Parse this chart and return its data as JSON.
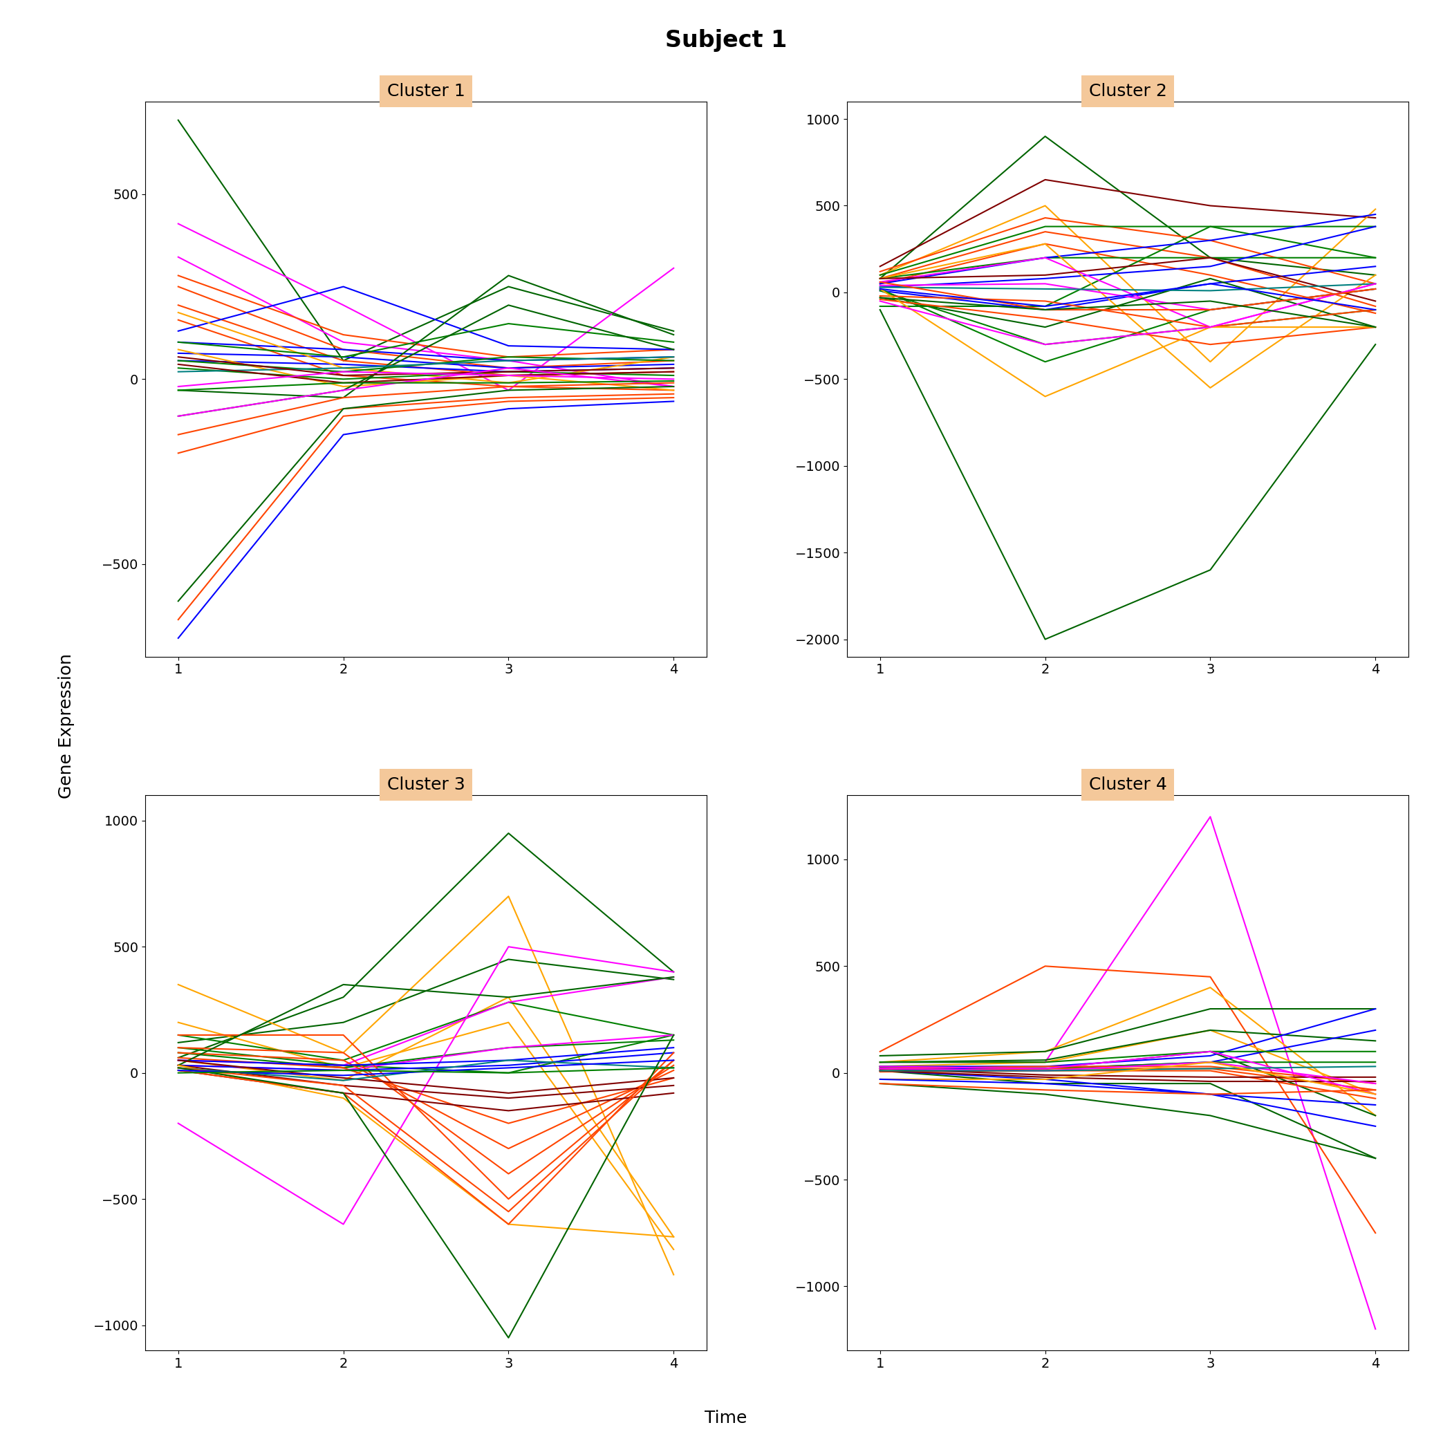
{
  "title": "Subject 1",
  "xlabel": "Time",
  "ylabel": "Gene Expression",
  "subplot_titles": [
    "Cluster 1",
    "Cluster 2",
    "Cluster 3",
    "Cluster 4"
  ],
  "x_values": [
    1,
    2,
    3,
    4
  ],
  "title_bg_color": "#F4C89A",
  "cluster1": {
    "ylim": [
      -750,
      750
    ],
    "yticks": [
      -500,
      0,
      500
    ],
    "lines": [
      {
        "color": "#006400",
        "y": [
          700,
          50,
          250,
          130
        ]
      },
      {
        "color": "#FF00FF",
        "y": [
          420,
          200,
          -30,
          300
        ]
      },
      {
        "color": "#FF00FF",
        "y": [
          330,
          100,
          50,
          -20
        ]
      },
      {
        "color": "#FF4500",
        "y": [
          280,
          120,
          60,
          80
        ]
      },
      {
        "color": "#FF4500",
        "y": [
          250,
          80,
          30,
          50
        ]
      },
      {
        "color": "#FF4500",
        "y": [
          200,
          50,
          10,
          20
        ]
      },
      {
        "color": "#FF4500",
        "y": [
          160,
          10,
          -20,
          -30
        ]
      },
      {
        "color": "#0000FF",
        "y": [
          130,
          250,
          90,
          80
        ]
      },
      {
        "color": "#0000FF",
        "y": [
          100,
          80,
          50,
          60
        ]
      },
      {
        "color": "#0000FF",
        "y": [
          70,
          60,
          30,
          40
        ]
      },
      {
        "color": "#0000FF",
        "y": [
          50,
          40,
          20,
          30
        ]
      },
      {
        "color": "#FFA500",
        "y": [
          180,
          30,
          -10,
          60
        ]
      },
      {
        "color": "#FFA500",
        "y": [
          80,
          -20,
          10,
          -30
        ]
      },
      {
        "color": "#008000",
        "y": [
          100,
          60,
          150,
          100
        ]
      },
      {
        "color": "#008000",
        "y": [
          50,
          20,
          60,
          50
        ]
      },
      {
        "color": "#008000",
        "y": [
          30,
          0,
          20,
          10
        ]
      },
      {
        "color": "#006400",
        "y": [
          -30,
          -50,
          280,
          120
        ]
      },
      {
        "color": "#006400",
        "y": [
          -100,
          -30,
          200,
          80
        ]
      },
      {
        "color": "#008080",
        "y": [
          20,
          30,
          50,
          60
        ]
      },
      {
        "color": "#800000",
        "y": [
          60,
          10,
          20,
          30
        ]
      },
      {
        "color": "#800000",
        "y": [
          40,
          -10,
          10,
          20
        ]
      },
      {
        "color": "#FF00FF",
        "y": [
          -100,
          -30,
          30,
          -20
        ]
      },
      {
        "color": "#FF4500",
        "y": [
          -150,
          -50,
          -20,
          -10
        ]
      },
      {
        "color": "#FF4500",
        "y": [
          -200,
          -80,
          -50,
          -40
        ]
      },
      {
        "color": "#006400",
        "y": [
          -600,
          -80,
          -30,
          -20
        ]
      },
      {
        "color": "#FF4500",
        "y": [
          -650,
          -100,
          -60,
          -50
        ]
      },
      {
        "color": "#0000FF",
        "y": [
          -700,
          -150,
          -80,
          -60
        ]
      },
      {
        "color": "#008000",
        "y": [
          -30,
          -10,
          -10,
          -5
        ]
      },
      {
        "color": "#FF00FF",
        "y": [
          -20,
          20,
          10,
          0
        ]
      }
    ]
  },
  "cluster2": {
    "ylim": [
      -2100,
      1100
    ],
    "yticks": [
      -2000,
      -1500,
      -1000,
      -500,
      0,
      500,
      1000
    ],
    "lines": [
      {
        "color": "#006400",
        "y": [
          80,
          900,
          200,
          100
        ]
      },
      {
        "color": "#800000",
        "y": [
          150,
          650,
          500,
          430
        ]
      },
      {
        "color": "#FFA500",
        "y": [
          100,
          500,
          -400,
          480
        ]
      },
      {
        "color": "#FF4500",
        "y": [
          120,
          430,
          300,
          50
        ]
      },
      {
        "color": "#FF4500",
        "y": [
          80,
          350,
          200,
          -80
        ]
      },
      {
        "color": "#FF4500",
        "y": [
          50,
          280,
          100,
          -120
        ]
      },
      {
        "color": "#008000",
        "y": [
          100,
          380,
          380,
          380
        ]
      },
      {
        "color": "#008000",
        "y": [
          80,
          200,
          200,
          200
        ]
      },
      {
        "color": "#008000",
        "y": [
          -80,
          -80,
          380,
          200
        ]
      },
      {
        "color": "#0000FF",
        "y": [
          50,
          200,
          300,
          450
        ]
      },
      {
        "color": "#0000FF",
        "y": [
          30,
          80,
          150,
          380
        ]
      },
      {
        "color": "#0000FF",
        "y": [
          10,
          -100,
          50,
          150
        ]
      },
      {
        "color": "#FFA500",
        "y": [
          80,
          280,
          -550,
          100
        ]
      },
      {
        "color": "#FF00FF",
        "y": [
          60,
          200,
          -200,
          50
        ]
      },
      {
        "color": "#FF00FF",
        "y": [
          40,
          50,
          -100,
          20
        ]
      },
      {
        "color": "#006400",
        "y": [
          -30,
          -200,
          80,
          -200
        ]
      },
      {
        "color": "#008000",
        "y": [
          20,
          -400,
          -100,
          20
        ]
      },
      {
        "color": "#008000",
        "y": [
          10,
          -300,
          -200,
          -100
        ]
      },
      {
        "color": "#FF4500",
        "y": [
          -20,
          -50,
          -200,
          -100
        ]
      },
      {
        "color": "#FF4500",
        "y": [
          -40,
          -150,
          -300,
          -200
        ]
      },
      {
        "color": "#006400",
        "y": [
          -100,
          -2000,
          -1600,
          -300
        ]
      },
      {
        "color": "#800000",
        "y": [
          80,
          100,
          200,
          -50
        ]
      },
      {
        "color": "#008080",
        "y": [
          30,
          20,
          10,
          50
        ]
      },
      {
        "color": "#FFA500",
        "y": [
          20,
          -600,
          -200,
          -200
        ]
      },
      {
        "color": "#FF00FF",
        "y": [
          -50,
          -300,
          -200,
          50
        ]
      },
      {
        "color": "#FF4500",
        "y": [
          60,
          -100,
          -100,
          20
        ]
      },
      {
        "color": "#0000FF",
        "y": [
          20,
          -80,
          50,
          -100
        ]
      },
      {
        "color": "#006400",
        "y": [
          -30,
          -100,
          -50,
          -200
        ]
      }
    ]
  },
  "cluster3": {
    "ylim": [
      -1100,
      1100
    ],
    "yticks": [
      -1000,
      -500,
      0,
      500,
      1000
    ],
    "lines": [
      {
        "color": "#006400",
        "y": [
          60,
          300,
          950,
          400
        ]
      },
      {
        "color": "#006400",
        "y": [
          120,
          200,
          450,
          370
        ]
      },
      {
        "color": "#FFA500",
        "y": [
          350,
          80,
          700,
          -800
        ]
      },
      {
        "color": "#FFA500",
        "y": [
          200,
          20,
          200,
          -700
        ]
      },
      {
        "color": "#FFA500",
        "y": [
          50,
          -30,
          300,
          -650
        ]
      },
      {
        "color": "#008000",
        "y": [
          150,
          50,
          280,
          150
        ]
      },
      {
        "color": "#008000",
        "y": [
          80,
          20,
          100,
          130
        ]
      },
      {
        "color": "#008000",
        "y": [
          100,
          30,
          0,
          150
        ]
      },
      {
        "color": "#FF00FF",
        "y": [
          -200,
          -600,
          500,
          400
        ]
      },
      {
        "color": "#FF00FF",
        "y": [
          50,
          30,
          280,
          380
        ]
      },
      {
        "color": "#FF00FF",
        "y": [
          30,
          10,
          100,
          150
        ]
      },
      {
        "color": "#FF4500",
        "y": [
          150,
          150,
          -500,
          50
        ]
      },
      {
        "color": "#FF4500",
        "y": [
          100,
          80,
          -400,
          30
        ]
      },
      {
        "color": "#FF4500",
        "y": [
          80,
          50,
          -300,
          10
        ]
      },
      {
        "color": "#FF4500",
        "y": [
          60,
          20,
          -200,
          -20
        ]
      },
      {
        "color": "#0000FF",
        "y": [
          50,
          30,
          50,
          100
        ]
      },
      {
        "color": "#0000FF",
        "y": [
          30,
          10,
          30,
          80
        ]
      },
      {
        "color": "#006400",
        "y": [
          30,
          350,
          300,
          380
        ]
      },
      {
        "color": "#800000",
        "y": [
          50,
          -20,
          -80,
          -20
        ]
      },
      {
        "color": "#800000",
        "y": [
          30,
          -50,
          -100,
          -50
        ]
      },
      {
        "color": "#800000",
        "y": [
          10,
          -80,
          -150,
          -80
        ]
      },
      {
        "color": "#FFA500",
        "y": [
          30,
          -100,
          -600,
          -650
        ]
      },
      {
        "color": "#008080",
        "y": [
          20,
          -30,
          50,
          20
        ]
      },
      {
        "color": "#FF4500",
        "y": [
          20,
          -50,
          -550,
          50
        ]
      },
      {
        "color": "#FF4500",
        "y": [
          10,
          -80,
          -600,
          80
        ]
      },
      {
        "color": "#006400",
        "y": [
          20,
          -80,
          -1050,
          150
        ]
      },
      {
        "color": "#0000FF",
        "y": [
          10,
          -10,
          20,
          50
        ]
      },
      {
        "color": "#008000",
        "y": [
          0,
          10,
          0,
          20
        ]
      }
    ]
  },
  "cluster4": {
    "ylim": [
      -1300,
      1300
    ],
    "yticks": [
      -1000,
      -500,
      0,
      500,
      1000
    ],
    "lines": [
      {
        "color": "#FF00FF",
        "y": [
          50,
          50,
          1200,
          -1200
        ]
      },
      {
        "color": "#FF4500",
        "y": [
          100,
          500,
          450,
          -750
        ]
      },
      {
        "color": "#FFA500",
        "y": [
          50,
          100,
          400,
          -200
        ]
      },
      {
        "color": "#FFA500",
        "y": [
          30,
          50,
          200,
          -100
        ]
      },
      {
        "color": "#006400",
        "y": [
          80,
          100,
          300,
          300
        ]
      },
      {
        "color": "#006400",
        "y": [
          50,
          60,
          200,
          150
        ]
      },
      {
        "color": "#006400",
        "y": [
          30,
          20,
          100,
          -200
        ]
      },
      {
        "color": "#006400",
        "y": [
          10,
          -50,
          -50,
          -400
        ]
      },
      {
        "color": "#0000FF",
        "y": [
          30,
          30,
          80,
          300
        ]
      },
      {
        "color": "#0000FF",
        "y": [
          20,
          20,
          50,
          200
        ]
      },
      {
        "color": "#0000FF",
        "y": [
          10,
          -30,
          -100,
          -250
        ]
      },
      {
        "color": "#008000",
        "y": [
          50,
          50,
          100,
          100
        ]
      },
      {
        "color": "#008000",
        "y": [
          30,
          20,
          50,
          50
        ]
      },
      {
        "color": "#FF4500",
        "y": [
          20,
          30,
          30,
          -50
        ]
      },
      {
        "color": "#FF4500",
        "y": [
          10,
          20,
          20,
          -80
        ]
      },
      {
        "color": "#FF4500",
        "y": [
          5,
          10,
          10,
          -120
        ]
      },
      {
        "color": "#800000",
        "y": [
          20,
          -10,
          -20,
          -20
        ]
      },
      {
        "color": "#800000",
        "y": [
          10,
          -20,
          -40,
          -40
        ]
      },
      {
        "color": "#FF00FF",
        "y": [
          30,
          20,
          100,
          -100
        ]
      },
      {
        "color": "#FF00FF",
        "y": [
          20,
          10,
          50,
          -50
        ]
      },
      {
        "color": "#008080",
        "y": [
          10,
          10,
          20,
          30
        ]
      },
      {
        "color": "#FFA500",
        "y": [
          -30,
          -30,
          50,
          -100
        ]
      },
      {
        "color": "#006400",
        "y": [
          -50,
          -100,
          -200,
          -400
        ]
      },
      {
        "color": "#0000FF",
        "y": [
          -30,
          -50,
          -100,
          -150
        ]
      },
      {
        "color": "#FF4500",
        "y": [
          -50,
          -80,
          -100,
          -80
        ]
      }
    ]
  }
}
